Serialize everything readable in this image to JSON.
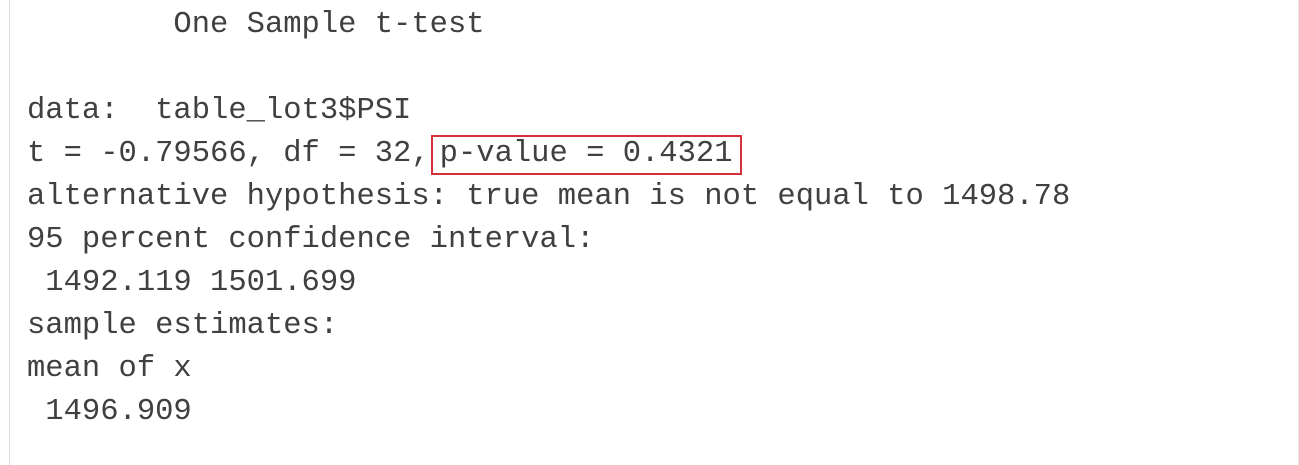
{
  "output": {
    "title": "        One Sample t-test",
    "blank": "",
    "data_line": "data:  table_lot3$PSI",
    "stats_prefix": "t = -0.79566, df = 32,",
    "p_value": "p-value = 0.4321",
    "alternative": "alternative hypothesis: true mean is not equal to 1498.78",
    "ci_header": "95 percent confidence interval:",
    "ci_values": " 1492.119 1501.699",
    "estimates_header": "sample estimates:",
    "estimate_label": "mean of x",
    "estimate_value": " 1496.909"
  },
  "colors": {
    "text": "#404040",
    "highlight_border": "#d6303a",
    "background": "#ffffff"
  }
}
